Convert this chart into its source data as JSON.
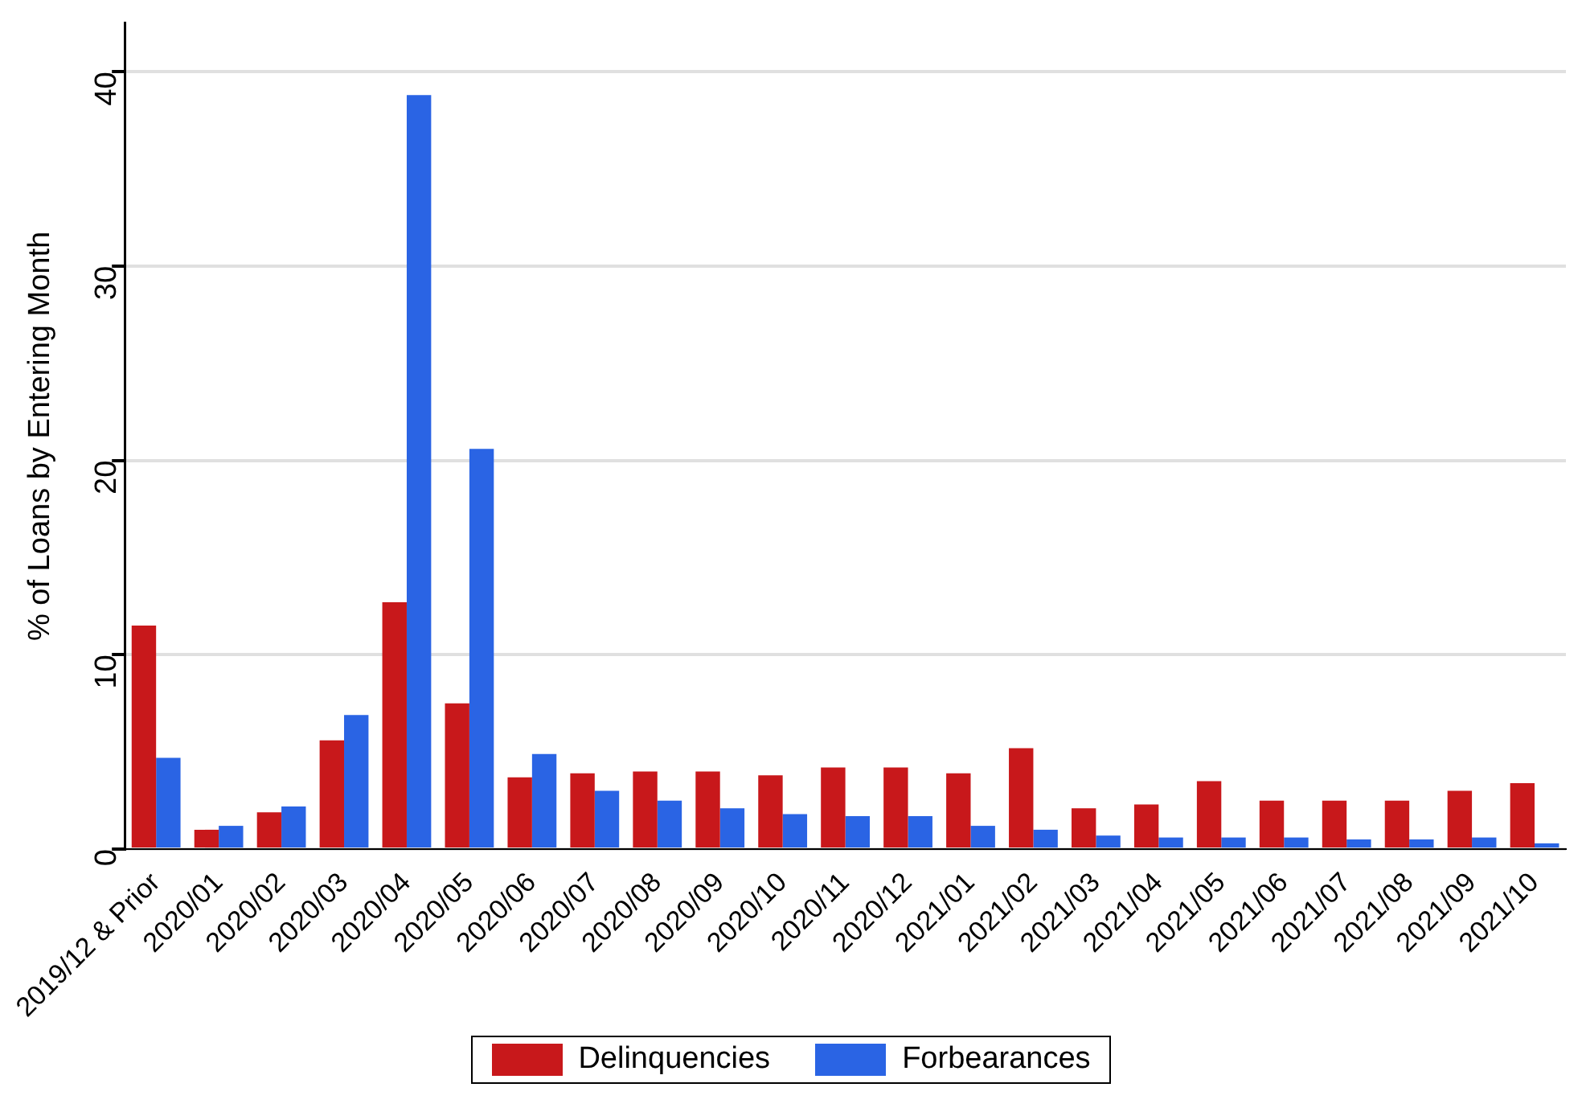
{
  "chart_data": {
    "type": "bar",
    "ylabel": "% of Loans by Entering Month",
    "categories": [
      "2019/12 & Prior",
      "2020/01",
      "2020/02",
      "2020/03",
      "2020/04",
      "2020/05",
      "2020/06",
      "2020/07",
      "2020/08",
      "2020/09",
      "2020/10",
      "2020/11",
      "2020/12",
      "2021/01",
      "2021/02",
      "2021/03",
      "2021/04",
      "2021/05",
      "2021/06",
      "2021/07",
      "2021/08",
      "2021/09",
      "2021/10"
    ],
    "series": [
      {
        "name": "Delinquencies",
        "color": "#c8181b",
        "values": [
          11.5,
          1.0,
          1.9,
          5.6,
          12.7,
          7.5,
          3.7,
          3.9,
          4.0,
          4.0,
          3.8,
          4.2,
          4.2,
          3.9,
          5.2,
          2.1,
          2.3,
          3.5,
          2.5,
          2.5,
          2.5,
          3.0,
          3.4
        ]
      },
      {
        "name": "Forbearances",
        "color": "#2a64e4",
        "values": [
          4.7,
          1.2,
          2.2,
          6.9,
          38.8,
          20.6,
          4.9,
          3.0,
          2.5,
          2.1,
          1.8,
          1.7,
          1.7,
          1.2,
          1.0,
          0.7,
          0.6,
          0.6,
          0.6,
          0.5,
          0.5,
          0.6,
          0.3
        ]
      }
    ],
    "ylim": [
      0,
      42.5
    ],
    "yticks": [
      0,
      10,
      20,
      30,
      40
    ],
    "grid": "y",
    "legend": "bottom"
  }
}
